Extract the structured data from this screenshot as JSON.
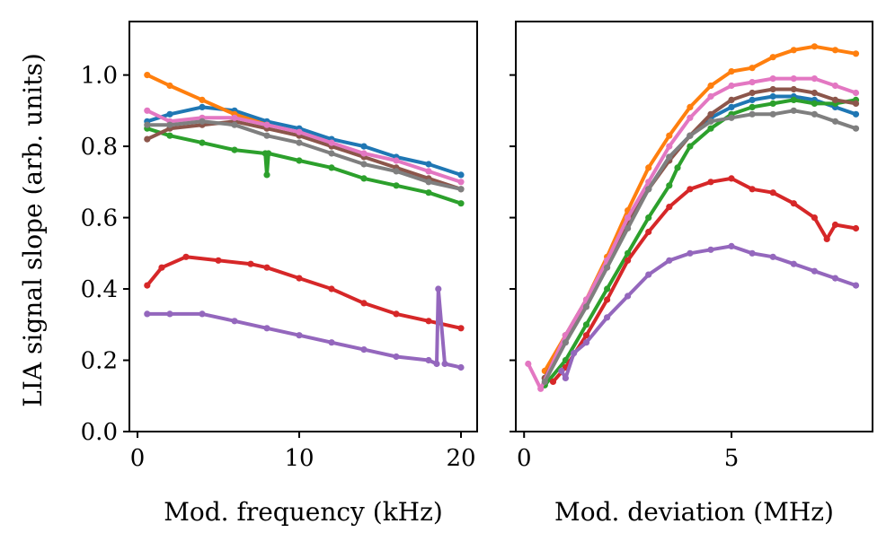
{
  "chart_data": [
    {
      "type": "line",
      "panel": "left",
      "xlabel": "Mod. frequency (kHz)",
      "ylabel": "LIA signal slope (arb. units)",
      "xlim": [
        -0.5,
        21
      ],
      "ylim": [
        0.0,
        1.15
      ],
      "xticks": [
        0,
        10,
        20
      ],
      "yticks": [
        0.0,
        0.2,
        0.4,
        0.6,
        0.8,
        1.0
      ],
      "xtick_labels": [
        "0",
        "10",
        "20"
      ],
      "ytick_labels": [
        "0.0",
        "0.2",
        "0.4",
        "0.6",
        "0.8",
        "1.0"
      ],
      "markers": true,
      "series": [
        {
          "name": "blue",
          "color": "#1f77b4",
          "x": [
            0.6,
            2,
            4,
            6,
            8,
            10,
            12,
            14,
            16,
            18,
            20
          ],
          "y": [
            0.87,
            0.89,
            0.91,
            0.9,
            0.87,
            0.85,
            0.82,
            0.8,
            0.77,
            0.75,
            0.72
          ]
        },
        {
          "name": "orange",
          "color": "#ff7f0e",
          "x": [
            0.6,
            2,
            4,
            6,
            8
          ],
          "y": [
            1.0,
            0.97,
            0.93,
            0.89,
            0.86
          ]
        },
        {
          "name": "green",
          "color": "#2ca02c",
          "x": [
            0.6,
            2,
            4,
            6,
            7.9,
            8,
            8.1,
            10,
            12,
            14,
            16,
            18,
            20
          ],
          "y": [
            0.85,
            0.83,
            0.81,
            0.79,
            0.78,
            0.72,
            0.78,
            0.76,
            0.74,
            0.71,
            0.69,
            0.67,
            0.64
          ]
        },
        {
          "name": "red",
          "color": "#d62728",
          "x": [
            0.6,
            1.5,
            3,
            5,
            7,
            8,
            10,
            12,
            14,
            16,
            18,
            20
          ],
          "y": [
            0.41,
            0.46,
            0.49,
            0.48,
            0.47,
            0.46,
            0.43,
            0.4,
            0.36,
            0.33,
            0.31,
            0.29
          ]
        },
        {
          "name": "purple",
          "color": "#9467bd",
          "x": [
            0.6,
            2,
            4,
            6,
            8,
            10,
            12,
            14,
            16,
            18,
            18.5,
            18.6,
            19,
            20
          ],
          "y": [
            0.33,
            0.33,
            0.33,
            0.31,
            0.29,
            0.27,
            0.25,
            0.23,
            0.21,
            0.2,
            0.19,
            0.4,
            0.19,
            0.18
          ]
        },
        {
          "name": "brown",
          "color": "#8c564b",
          "x": [
            0.6,
            2,
            4,
            6,
            8,
            10,
            12,
            14,
            16,
            18,
            20
          ],
          "y": [
            0.82,
            0.85,
            0.86,
            0.87,
            0.85,
            0.83,
            0.8,
            0.77,
            0.74,
            0.71,
            0.68
          ]
        },
        {
          "name": "pink",
          "color": "#e377c2",
          "x": [
            0.6,
            2,
            4,
            6,
            8,
            10,
            12,
            14,
            16,
            18,
            20
          ],
          "y": [
            0.9,
            0.87,
            0.88,
            0.88,
            0.86,
            0.84,
            0.81,
            0.78,
            0.76,
            0.73,
            0.7
          ]
        },
        {
          "name": "gray",
          "color": "#7f7f7f",
          "x": [
            0.6,
            2,
            4,
            6,
            8,
            10,
            12,
            14,
            16,
            18,
            20
          ],
          "y": [
            0.86,
            0.86,
            0.87,
            0.86,
            0.83,
            0.81,
            0.78,
            0.75,
            0.73,
            0.7,
            0.68
          ]
        }
      ]
    },
    {
      "type": "line",
      "panel": "right",
      "xlabel": "Mod. deviation (MHz)",
      "ylabel": "",
      "xlim": [
        -0.2,
        8.4
      ],
      "ylim": [
        0.0,
        1.15
      ],
      "xticks": [
        0,
        5
      ],
      "yticks": [
        0.0,
        0.2,
        0.4,
        0.6,
        0.8,
        1.0
      ],
      "xtick_labels": [
        "0",
        "5"
      ],
      "ytick_labels": [],
      "markers": true,
      "series": [
        {
          "name": "blue",
          "color": "#1f77b4",
          "x": [
            0.5,
            1,
            1.5,
            2,
            2.5,
            3,
            3.5,
            4,
            4.5,
            5,
            5.5,
            6,
            6.5,
            7,
            7.5,
            8
          ],
          "y": [
            0.15,
            0.27,
            0.37,
            0.47,
            0.6,
            0.68,
            0.77,
            0.83,
            0.88,
            0.91,
            0.93,
            0.94,
            0.94,
            0.93,
            0.91,
            0.89
          ]
        },
        {
          "name": "orange",
          "color": "#ff7f0e",
          "x": [
            0.5,
            1,
            1.5,
            2,
            2.5,
            3,
            3.5,
            4,
            4.5,
            5,
            5.5,
            6,
            6.5,
            7,
            7.5,
            8
          ],
          "y": [
            0.17,
            0.27,
            0.37,
            0.49,
            0.62,
            0.74,
            0.83,
            0.91,
            0.97,
            1.01,
            1.02,
            1.05,
            1.07,
            1.08,
            1.07,
            1.06
          ]
        },
        {
          "name": "green",
          "color": "#2ca02c",
          "x": [
            0.5,
            1,
            1.5,
            2,
            2.5,
            3,
            3.5,
            3.7,
            4,
            4.5,
            5,
            5.5,
            6,
            6.5,
            7,
            7.5,
            8
          ],
          "y": [
            0.13,
            0.2,
            0.3,
            0.4,
            0.5,
            0.6,
            0.69,
            0.74,
            0.8,
            0.85,
            0.89,
            0.91,
            0.92,
            0.93,
            0.92,
            0.92,
            0.93
          ]
        },
        {
          "name": "red",
          "color": "#d62728",
          "x": [
            0.7,
            1,
            1.5,
            2,
            2.5,
            3,
            3.5,
            4,
            4.5,
            5,
            5.5,
            6,
            6.5,
            7,
            7.3,
            7.5,
            8
          ],
          "y": [
            0.14,
            0.18,
            0.27,
            0.37,
            0.48,
            0.56,
            0.63,
            0.68,
            0.7,
            0.71,
            0.68,
            0.67,
            0.64,
            0.6,
            0.54,
            0.58,
            0.57
          ]
        },
        {
          "name": "purple",
          "color": "#9467bd",
          "x": [
            0.9,
            1,
            1.2,
            1.5,
            2,
            2.5,
            3,
            3.5,
            4,
            4.5,
            5,
            5.5,
            6,
            6.5,
            7,
            7.5,
            8
          ],
          "y": [
            0.17,
            0.15,
            0.22,
            0.25,
            0.32,
            0.38,
            0.44,
            0.48,
            0.5,
            0.51,
            0.52,
            0.5,
            0.49,
            0.47,
            0.45,
            0.43,
            0.41
          ]
        },
        {
          "name": "brown",
          "color": "#8c564b",
          "x": [
            0.5,
            1,
            1.5,
            2,
            2.5,
            3,
            3.5,
            4,
            4.5,
            5,
            5.5,
            6,
            6.5,
            7,
            7.5,
            8
          ],
          "y": [
            0.15,
            0.26,
            0.36,
            0.47,
            0.58,
            0.68,
            0.76,
            0.83,
            0.89,
            0.93,
            0.95,
            0.96,
            0.96,
            0.95,
            0.93,
            0.92
          ]
        },
        {
          "name": "pink",
          "color": "#e377c2",
          "x": [
            0.1,
            0.4,
            1,
            1.5,
            2,
            2.5,
            3,
            3.5,
            4,
            4.5,
            5,
            5.5,
            6,
            6.5,
            7,
            7.5,
            8
          ],
          "y": [
            0.19,
            0.12,
            0.27,
            0.37,
            0.48,
            0.6,
            0.7,
            0.8,
            0.88,
            0.94,
            0.97,
            0.98,
            0.99,
            0.99,
            0.99,
            0.97,
            0.95
          ]
        },
        {
          "name": "gray",
          "color": "#7f7f7f",
          "x": [
            0.5,
            1,
            1.5,
            2,
            2.5,
            3,
            3.5,
            4,
            4.5,
            5,
            5.5,
            6,
            6.5,
            7,
            7.5,
            8
          ],
          "y": [
            0.14,
            0.25,
            0.35,
            0.46,
            0.57,
            0.68,
            0.77,
            0.83,
            0.87,
            0.88,
            0.89,
            0.89,
            0.9,
            0.89,
            0.87,
            0.85
          ]
        }
      ]
    }
  ]
}
